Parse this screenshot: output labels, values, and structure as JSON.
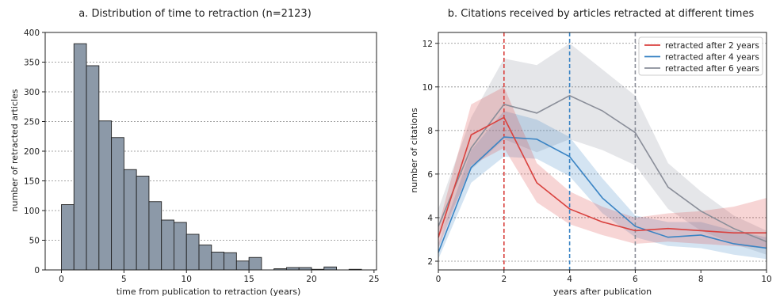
{
  "chart_data": [
    {
      "type": "bar",
      "title": "a. Distribution of time to retraction (n=2123)",
      "xlabel": "time from publication to retraction (years)",
      "ylabel": "number of retracted articles",
      "xlim": [
        -1.3,
        25.2
      ],
      "ylim": [
        0,
        400
      ],
      "xticks": [
        0,
        5,
        10,
        15,
        20,
        25
      ],
      "yticks": [
        0,
        50,
        100,
        150,
        200,
        250,
        300,
        350,
        400
      ],
      "bin_width": 1,
      "bin_starts": [
        0,
        1,
        2,
        3,
        4,
        5,
        6,
        7,
        8,
        9,
        10,
        11,
        12,
        13,
        14,
        15,
        16,
        17,
        18,
        19,
        20,
        21,
        22,
        23
      ],
      "values": [
        110,
        381,
        344,
        251,
        223,
        169,
        158,
        115,
        84,
        80,
        60,
        42,
        30,
        29,
        15,
        21,
        0,
        2,
        4,
        4,
        1,
        5,
        0,
        1
      ],
      "bar_color": "#8c99a8",
      "edge_color": "#222222",
      "grid": "horizontal dashed"
    },
    {
      "type": "line",
      "title": "b. Citations received by articles retracted at different times",
      "xlabel": "years after publication",
      "ylabel": "number of citations",
      "xlim": [
        0,
        10
      ],
      "ylim": [
        1.6,
        12.5
      ],
      "xticks": [
        0,
        2,
        4,
        6,
        8,
        10
      ],
      "yticks": [
        2,
        4,
        6,
        8,
        10,
        12
      ],
      "x": [
        0,
        1,
        2,
        3,
        4,
        5,
        6,
        7,
        8,
        9,
        10
      ],
      "legend_position": "top-right",
      "grid": "horizontal dashed",
      "series": [
        {
          "name": "retracted after 2 years",
          "color": "#d9413e",
          "values": [
            3.1,
            7.8,
            8.6,
            5.6,
            4.4,
            3.8,
            3.4,
            3.5,
            3.4,
            3.3,
            3.3
          ],
          "lower": [
            2.6,
            6.4,
            7.2,
            4.7,
            3.7,
            3.2,
            2.8,
            2.9,
            2.8,
            2.7,
            2.6
          ],
          "upper": [
            3.6,
            9.2,
            10.0,
            6.5,
            5.2,
            4.5,
            4.0,
            4.2,
            4.3,
            4.5,
            4.9
          ],
          "marker_x": 2
        },
        {
          "name": "retracted after 4 years",
          "color": "#3a84c4",
          "values": [
            2.4,
            6.3,
            7.7,
            7.6,
            6.8,
            4.9,
            3.6,
            3.1,
            3.2,
            2.8,
            2.6
          ],
          "lower": [
            2.1,
            5.6,
            6.8,
            6.7,
            5.9,
            4.2,
            3.1,
            2.7,
            2.6,
            2.3,
            2.1
          ],
          "upper": [
            2.8,
            7.1,
            8.9,
            8.5,
            7.7,
            5.8,
            4.1,
            3.8,
            3.8,
            3.4,
            3.1
          ],
          "marker_x": 4
        },
        {
          "name": "retracted after 6 years",
          "color": "#8a8e99",
          "values": [
            3.6,
            7.2,
            9.2,
            8.8,
            9.6,
            8.9,
            7.9,
            5.4,
            4.3,
            3.5,
            2.9
          ],
          "lower": [
            3.0,
            6.2,
            7.6,
            7.0,
            7.6,
            7.1,
            6.4,
            4.4,
            3.4,
            2.8,
            2.3
          ],
          "upper": [
            4.4,
            8.6,
            11.3,
            11.0,
            12.0,
            10.8,
            9.6,
            6.5,
            5.2,
            4.1,
            3.4
          ],
          "marker_x": 6
        }
      ]
    }
  ]
}
